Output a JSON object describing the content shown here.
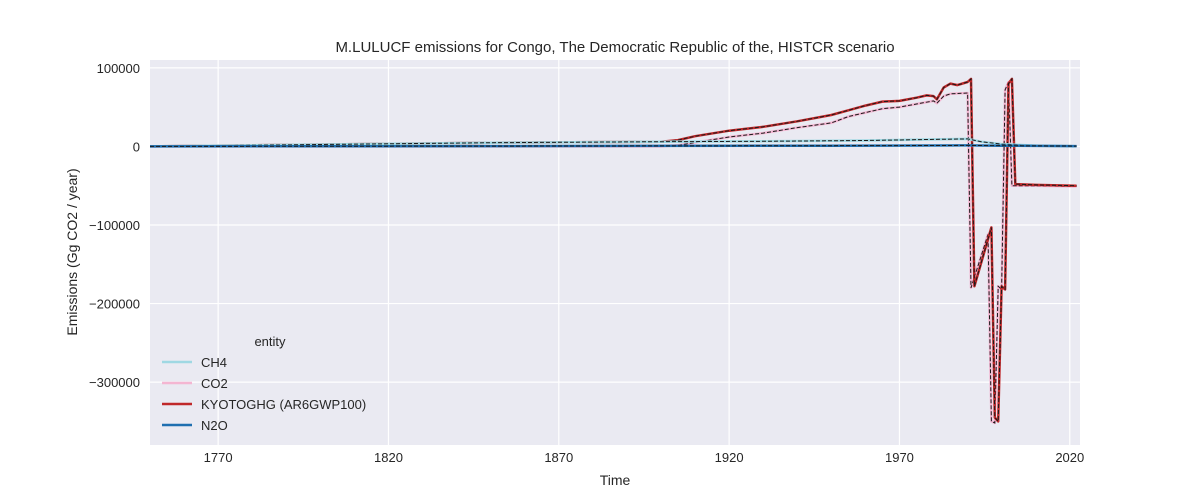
{
  "chart_data": {
    "type": "line",
    "title": "M.LULUCF emissions for Congo, The Democratic Republic of the, HISTCR scenario",
    "xlabel": "Time",
    "ylabel": "Emissions (Gg CO2 / year)",
    "xlim": [
      1750,
      2023
    ],
    "ylim": [
      -380000,
      110000
    ],
    "xticks": [
      1770,
      1820,
      1870,
      1920,
      1970,
      2020
    ],
    "yticks": [
      100000,
      0,
      -100000,
      -200000,
      -300000
    ],
    "ytick_labels": [
      "100000",
      "0",
      "−100000",
      "−200000",
      "−300000"
    ],
    "grid": true,
    "legend": {
      "title": "entity",
      "placement": "lower-left"
    },
    "series": [
      {
        "name": "CH4",
        "color": "#9fd8e3",
        "points": [
          [
            1750,
            0
          ],
          [
            1800,
            2500
          ],
          [
            1850,
            4800
          ],
          [
            1900,
            6000
          ],
          [
            1930,
            6500
          ],
          [
            1960,
            7500
          ],
          [
            1980,
            9000
          ],
          [
            1990,
            9600
          ],
          [
            1994,
            6000
          ],
          [
            2000,
            3000
          ],
          [
            2010,
            1000
          ],
          [
            2022,
            200
          ]
        ]
      },
      {
        "name": "CO2",
        "color": "#f4b6d2",
        "points": [
          [
            1750,
            0
          ],
          [
            1900,
            0
          ],
          [
            1905,
            1500
          ],
          [
            1910,
            5000
          ],
          [
            1920,
            12000
          ],
          [
            1930,
            17000
          ],
          [
            1940,
            24000
          ],
          [
            1950,
            30000
          ],
          [
            1955,
            38000
          ],
          [
            1960,
            43000
          ],
          [
            1965,
            48000
          ],
          [
            1970,
            50000
          ],
          [
            1975,
            54000
          ],
          [
            1980,
            58000
          ],
          [
            1981,
            55000
          ],
          [
            1983,
            64000
          ],
          [
            1985,
            67000
          ],
          [
            1990,
            68000
          ],
          [
            1991,
            -180000
          ],
          [
            1996,
            -112000
          ],
          [
            1997,
            -350000
          ],
          [
            1998,
            -352000
          ],
          [
            1999,
            -178000
          ],
          [
            2000,
            -182000
          ],
          [
            2001,
            72000
          ],
          [
            2002,
            82000
          ],
          [
            2003,
            -50000
          ],
          [
            2010,
            -50000
          ],
          [
            2022,
            -51000
          ]
        ]
      },
      {
        "name": "KYOTOGHG (AR6GWP100)",
        "color": "#c0282a",
        "points": [
          [
            1750,
            0
          ],
          [
            1800,
            2500
          ],
          [
            1850,
            4800
          ],
          [
            1900,
            6000
          ],
          [
            1905,
            8000
          ],
          [
            1910,
            13000
          ],
          [
            1920,
            20000
          ],
          [
            1930,
            25000
          ],
          [
            1940,
            32000
          ],
          [
            1950,
            40000
          ],
          [
            1955,
            46000
          ],
          [
            1960,
            52000
          ],
          [
            1965,
            57000
          ],
          [
            1970,
            58000
          ],
          [
            1975,
            62000
          ],
          [
            1978,
            65000
          ],
          [
            1980,
            64000
          ],
          [
            1981,
            60000
          ],
          [
            1983,
            75000
          ],
          [
            1985,
            80000
          ],
          [
            1987,
            78000
          ],
          [
            1990,
            82000
          ],
          [
            1991,
            86000
          ],
          [
            1992,
            -178000
          ],
          [
            1997,
            -103000
          ],
          [
            1998,
            -345000
          ],
          [
            1999,
            -350000
          ],
          [
            2000,
            -178000
          ],
          [
            2001,
            -182000
          ],
          [
            2002,
            80000
          ],
          [
            2003,
            86000
          ],
          [
            2004,
            -48000
          ],
          [
            2010,
            -49000
          ],
          [
            2022,
            -50000
          ]
        ]
      },
      {
        "name": "N2O",
        "color": "#1f6fb0",
        "points": [
          [
            1750,
            0
          ],
          [
            1850,
            400
          ],
          [
            1950,
            900
          ],
          [
            1980,
            1200
          ],
          [
            1990,
            1300
          ],
          [
            2000,
            900
          ],
          [
            2022,
            400
          ]
        ]
      }
    ]
  }
}
